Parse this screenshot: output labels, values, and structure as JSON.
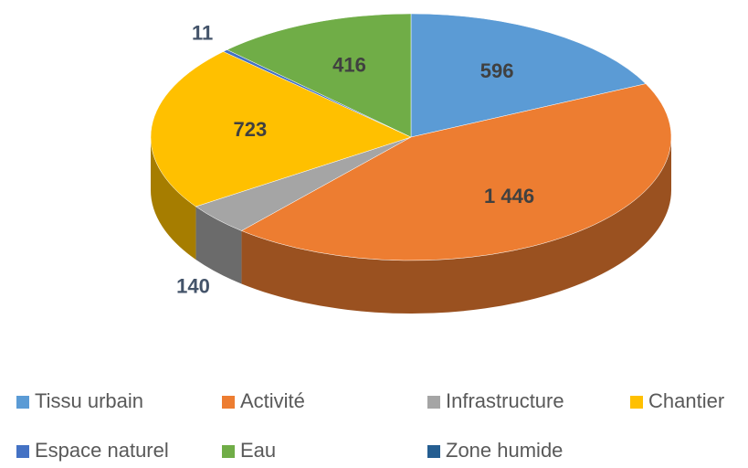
{
  "chart_data": {
    "type": "pie3d",
    "categories": [
      "Tissu urbain",
      "Activité",
      "Infrastructure",
      "Chantier",
      "Espace naturel",
      "Eau",
      "Zone humide"
    ],
    "values": [
      596,
      1446,
      140,
      723,
      11,
      416,
      null
    ],
    "value_labels": [
      "596",
      "1 446",
      "140",
      "723",
      "11",
      "416",
      null
    ],
    "colors": [
      "#5b9bd5",
      "#ed7d31",
      "#a5a5a5",
      "#ffc000",
      "#4472c4",
      "#70ad47",
      "#255e91"
    ],
    "legend": "bottom"
  }
}
